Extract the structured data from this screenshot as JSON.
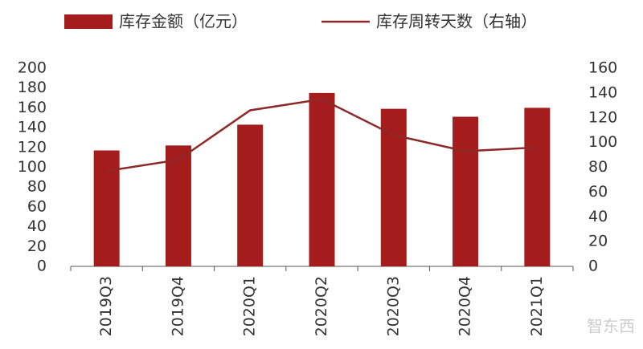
{
  "chart_data": {
    "type": "bar-line",
    "categories": [
      "2019Q3",
      "2019Q4",
      "2020Q1",
      "2020Q2",
      "2020Q3",
      "2020Q4",
      "2021Q1"
    ],
    "series": [
      {
        "name": "库存金额（亿元）",
        "type": "bar",
        "color": "#a51c1c",
        "values": [
          117,
          122,
          143,
          175,
          159,
          151,
          160
        ]
      },
      {
        "name": "库存周转天数（右轴）",
        "type": "line",
        "axis": "y2",
        "color": "#8c2a2a",
        "values": [
          77,
          86,
          126,
          135,
          106,
          93,
          96
        ]
      }
    ],
    "ylim": [
      0,
      200
    ],
    "yticks": [
      0,
      20,
      40,
      60,
      80,
      100,
      120,
      140,
      160,
      180,
      200
    ],
    "y2lim": [
      0,
      160
    ],
    "y2ticks": [
      0,
      20,
      40,
      60,
      80,
      100,
      120,
      140,
      160
    ],
    "legend": "top",
    "grid": false
  },
  "watermark": "智东西"
}
